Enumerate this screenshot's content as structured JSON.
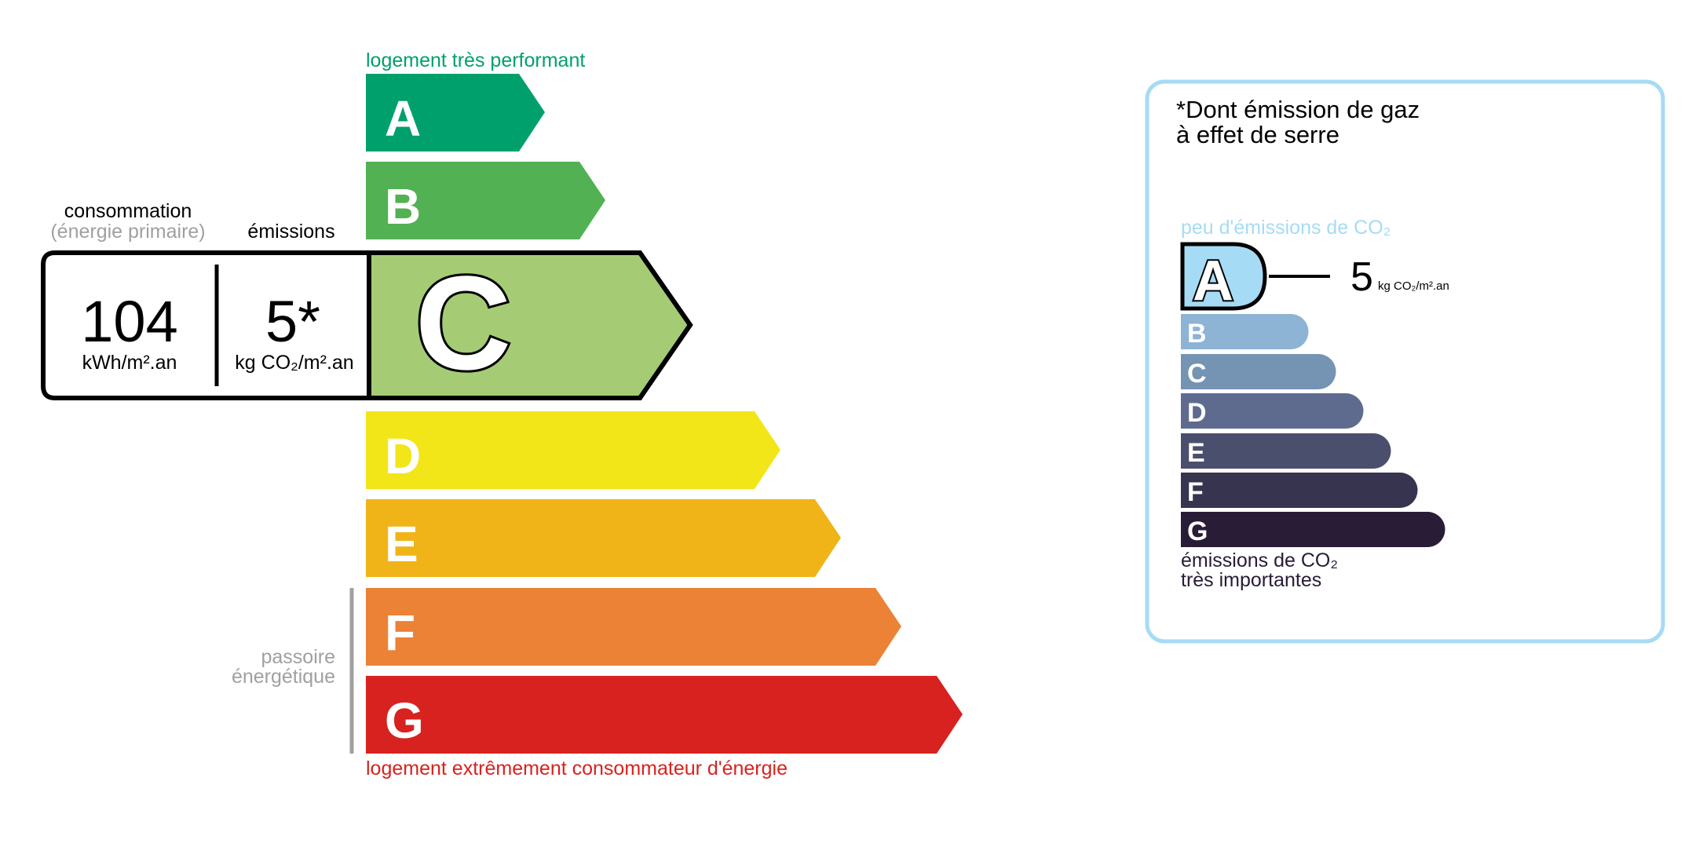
{
  "energy": {
    "top_label": "logement très performant",
    "bottom_label": "logement extrêmement consommateur d'énergie",
    "passoire_line1": "passoire",
    "passoire_line2": "énergétique",
    "classes": [
      {
        "letter": "A",
        "color": "#00a06d"
      },
      {
        "letter": "B",
        "color": "#52b153"
      },
      {
        "letter": "C",
        "color": "#a5cc74"
      },
      {
        "letter": "D",
        "color": "#f2e619"
      },
      {
        "letter": "E",
        "color": "#f0b418"
      },
      {
        "letter": "F",
        "color": "#eb8235"
      },
      {
        "letter": "G",
        "color": "#d7221f"
      }
    ],
    "current_class": "C",
    "consumption_header": "consommation",
    "consumption_subheader": "(énergie primaire)",
    "emissions_header": "émissions",
    "consumption_value": "104",
    "consumption_unit": "kWh/m².an",
    "emissions_value": "5*",
    "emissions_unit": "kg CO₂/m².an"
  },
  "ges": {
    "title_line1": "*Dont émission de gaz",
    "title_line2": "à effet de serre",
    "top_label": "peu d'émissions de CO₂",
    "bottom_label_line1": "émissions de CO₂",
    "bottom_label_line2": "très importantes",
    "border_color": "#a6dbf5",
    "classes": [
      {
        "letter": "A",
        "color": "#a6dbf5"
      },
      {
        "letter": "B",
        "color": "#8db3d5"
      },
      {
        "letter": "C",
        "color": "#7593b3"
      },
      {
        "letter": "D",
        "color": "#5e6b8f"
      },
      {
        "letter": "E",
        "color": "#4b4f6e"
      },
      {
        "letter": "F",
        "color": "#36344f"
      },
      {
        "letter": "G",
        "color": "#281c37"
      }
    ],
    "current_class": "A",
    "value": "5",
    "unit": "kg CO₂/m².an"
  }
}
